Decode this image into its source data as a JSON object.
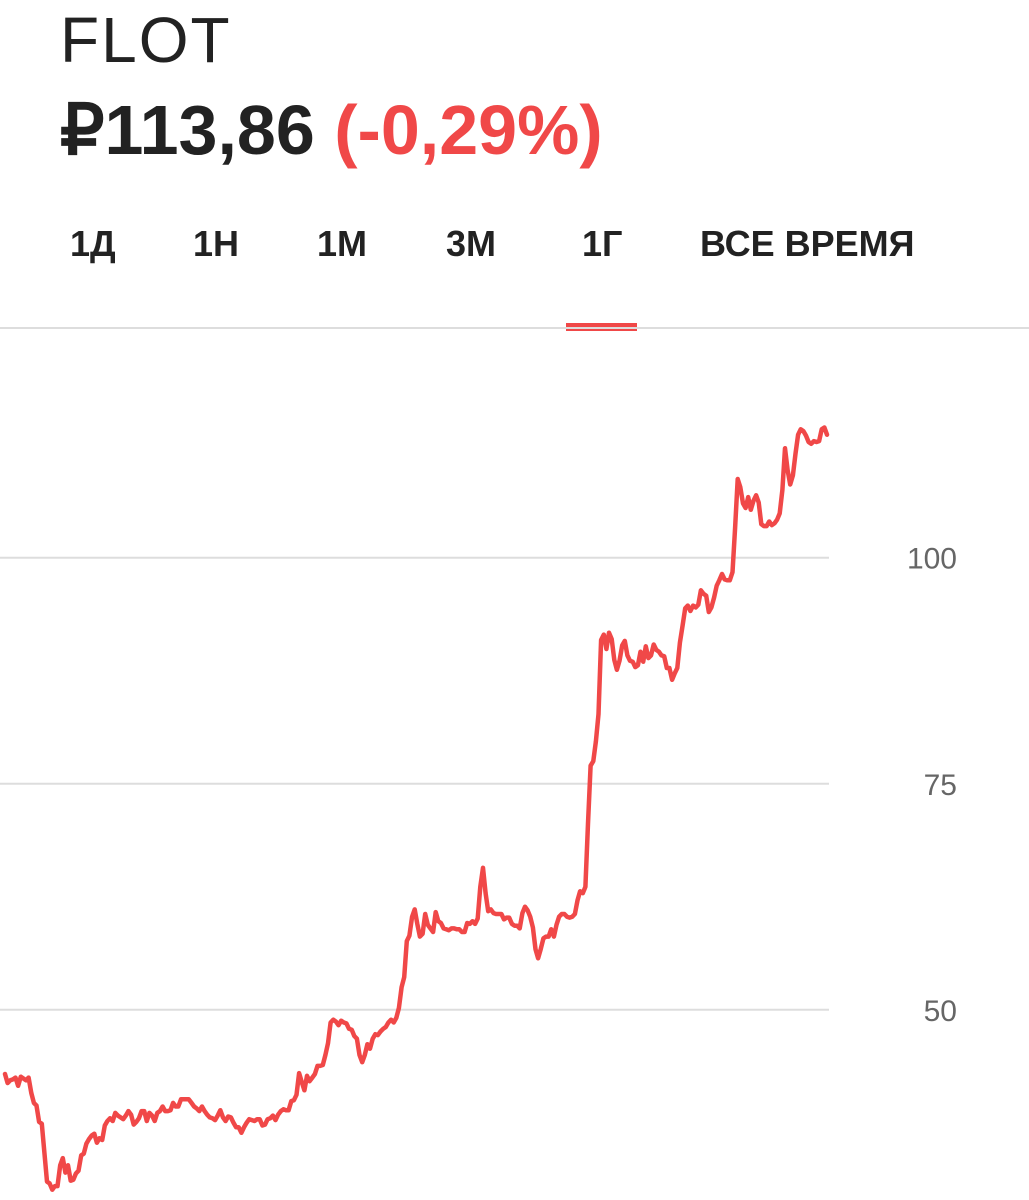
{
  "header": {
    "ticker": "FLOT",
    "price": "₽113,86",
    "change": "(-0,29%)"
  },
  "tabs": [
    {
      "label": "1Д",
      "active": false
    },
    {
      "label": "1Н",
      "active": false
    },
    {
      "label": "1М",
      "active": false
    },
    {
      "label": "3М",
      "active": false
    },
    {
      "label": "1Г",
      "active": true
    },
    {
      "label": "ВСЕ ВРЕМЯ",
      "active": false
    }
  ],
  "colors": {
    "accent": "#f04848",
    "text": "#222222",
    "grid": "#dddddd",
    "axis_text": "#666666"
  },
  "chart_data": {
    "type": "line",
    "y_ticks": [
      {
        "value": 50,
        "label": "50"
      },
      {
        "value": 75,
        "label": "75"
      },
      {
        "value": 100,
        "label": "100"
      }
    ],
    "grid": true,
    "y_axis_position": "right",
    "ylim": [
      30,
      120
    ],
    "series": [
      {
        "values": [
          42.9,
          41.9,
          42.2,
          42.3,
          42.5,
          41.6,
          42.6,
          42.4,
          42.2,
          42.5,
          40.8,
          39.7,
          39.4,
          37.6,
          37.4,
          34.2,
          31.0,
          30.8,
          30.1,
          30.5,
          30.5,
          32.8,
          33.6,
          32.0,
          32.8,
          31.1,
          31.2,
          31.9,
          32.2,
          33.9,
          34.1,
          35.2,
          35.7,
          36.1,
          36.3,
          35.3,
          35.8,
          35.6,
          37.2,
          37.7,
          38.0,
          37.7,
          38.6,
          38.3,
          38.1,
          37.9,
          38.3,
          38.8,
          38.4,
          37.3,
          37.6,
          38.0,
          38.8,
          38.8,
          37.7,
          38.6,
          38.3,
          37.7,
          38.6,
          38.8,
          39.3,
          38.8,
          38.8,
          38.9,
          39.7,
          39.3,
          39.3,
          40.1,
          40.1,
          40.1,
          40.1,
          39.7,
          39.3,
          39.1,
          38.8,
          39.3,
          38.8,
          38.4,
          38.1,
          38.0,
          37.8,
          38.3,
          38.9,
          38.1,
          37.7,
          38.2,
          38.1,
          37.5,
          37.0,
          37.0,
          36.4,
          37.0,
          37.5,
          37.9,
          37.8,
          37.7,
          37.9,
          37.9,
          37.2,
          37.3,
          37.9,
          38.0,
          38.3,
          37.8,
          38.4,
          38.8,
          39.0,
          38.9,
          38.9,
          39.9,
          40.0,
          40.6,
          43.0,
          42.0,
          41.1,
          42.7,
          42.1,
          42.5,
          42.9,
          43.8,
          43.8,
          43.9,
          45.0,
          46.3,
          48.6,
          48.9,
          48.7,
          48.3,
          48.8,
          48.6,
          48.5,
          47.9,
          47.8,
          47.1,
          46.8,
          45.0,
          44.2,
          45.0,
          46.2,
          45.7,
          46.8,
          47.3,
          47.2,
          47.6,
          47.9,
          48.1,
          48.6,
          48.9,
          48.6,
          49.1,
          50.2,
          52.5,
          53.6,
          57.6,
          58.2,
          60.3,
          61.1,
          59.5,
          58.1,
          58.4,
          60.6,
          59.4,
          59.0,
          58.6,
          60.8,
          59.8,
          59.6,
          59.0,
          58.9,
          58.8,
          59.0,
          59.0,
          58.9,
          58.9,
          58.6,
          58.6,
          59.6,
          59.5,
          59.8,
          59.5,
          60.1,
          63.6,
          65.7,
          62.9,
          60.9,
          61.1,
          60.7,
          60.6,
          60.6,
          60.6,
          60.0,
          60.2,
          60.2,
          59.5,
          59.3,
          59.3,
          59.0,
          60.7,
          61.4,
          61.0,
          60.3,
          59.1,
          56.7,
          55.7,
          56.7,
          57.9,
          58.1,
          58.1,
          58.9,
          58.1,
          59.4,
          60.3,
          60.6,
          60.6,
          60.3,
          60.2,
          60.3,
          60.6,
          62.1,
          63.1,
          62.9,
          63.6,
          70.6,
          77.0,
          77.5,
          79.7,
          82.7,
          90.9,
          91.5,
          89.9,
          91.7,
          91.0,
          88.7,
          87.6,
          88.6,
          90.3,
          90.8,
          89.2,
          88.6,
          88.5,
          87.9,
          88.1,
          89.6,
          88.5,
          90.2,
          88.9,
          89.2,
          90.4,
          89.8,
          89.6,
          89.2,
          89.1,
          87.8,
          87.8,
          86.5,
          87.2,
          87.8,
          90.6,
          92.5,
          94.4,
          94.7,
          94.1,
          94.7,
          94.5,
          94.8,
          96.4,
          96.0,
          95.8,
          94.0,
          94.5,
          95.6,
          96.9,
          97.5,
          98.2,
          97.6,
          97.5,
          97.5,
          98.4,
          103.3,
          108.7,
          107.8,
          106.0,
          105.5,
          106.7,
          105.3,
          106.3,
          106.9,
          106.1,
          103.7,
          103.5,
          103.5,
          104.0,
          103.6,
          103.8,
          104.2,
          104.9,
          107.5,
          112.1,
          109.7,
          108.1,
          109.1,
          111.5,
          113.6,
          114.2,
          114.0,
          113.5,
          112.8,
          112.6,
          112.9,
          112.8,
          112.9,
          114.2,
          114.4,
          113.6
        ]
      }
    ]
  }
}
